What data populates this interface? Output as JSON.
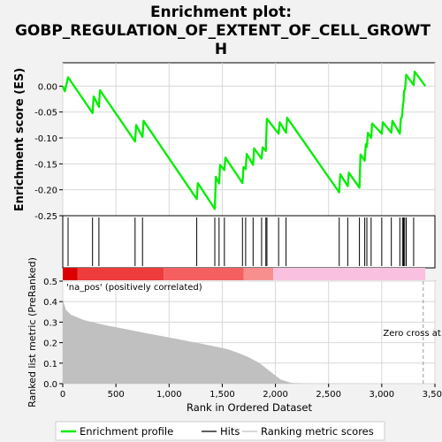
{
  "chart_data": {
    "type": "line",
    "title_line1": "Enrichment plot:",
    "title_line2": "GOBP_REGULATION_OF_EXTENT_OF_CELL_GROWT",
    "title_line3": "H",
    "es_panel": {
      "ylabel": "Enrichment score (ES)",
      "ylim": [
        -0.25,
        0.045
      ],
      "yticks": [
        0.0,
        -0.05,
        -0.1,
        -0.15,
        -0.2,
        -0.25
      ],
      "ytick_labels": [
        "0.00",
        "-0.05",
        "-0.10",
        "-0.15",
        "-0.20",
        "-0.25"
      ],
      "series_name": "Enrichment profile",
      "color": "#00ee00",
      "points": [
        [
          0,
          0.0
        ],
        [
          20,
          -0.01
        ],
        [
          50,
          0.017
        ],
        [
          280,
          -0.052
        ],
        [
          290,
          -0.02
        ],
        [
          340,
          -0.04
        ],
        [
          350,
          -0.008
        ],
        [
          680,
          -0.107
        ],
        [
          690,
          -0.075
        ],
        [
          750,
          -0.098
        ],
        [
          760,
          -0.067
        ],
        [
          1260,
          -0.218
        ],
        [
          1270,
          -0.187
        ],
        [
          1430,
          -0.237
        ],
        [
          1440,
          -0.175
        ],
        [
          1470,
          -0.188
        ],
        [
          1480,
          -0.152
        ],
        [
          1520,
          -0.162
        ],
        [
          1530,
          -0.138
        ],
        [
          1690,
          -0.187
        ],
        [
          1700,
          -0.156
        ],
        [
          1720,
          -0.16
        ],
        [
          1730,
          -0.131
        ],
        [
          1790,
          -0.152
        ],
        [
          1800,
          -0.12
        ],
        [
          1870,
          -0.14
        ],
        [
          1880,
          -0.118
        ],
        [
          1910,
          -0.125
        ],
        [
          1920,
          -0.063
        ],
        [
          2030,
          -0.092
        ],
        [
          2040,
          -0.07
        ],
        [
          2100,
          -0.09
        ],
        [
          2110,
          -0.061
        ],
        [
          2600,
          -0.205
        ],
        [
          2610,
          -0.17
        ],
        [
          2680,
          -0.193
        ],
        [
          2690,
          -0.167
        ],
        [
          2790,
          -0.196
        ],
        [
          2800,
          -0.132
        ],
        [
          2840,
          -0.144
        ],
        [
          2850,
          -0.112
        ],
        [
          2860,
          -0.117
        ],
        [
          2870,
          -0.09
        ],
        [
          2900,
          -0.1
        ],
        [
          2910,
          -0.072
        ],
        [
          3000,
          -0.092
        ],
        [
          3010,
          -0.07
        ],
        [
          3090,
          -0.09
        ],
        [
          3100,
          -0.067
        ],
        [
          3170,
          -0.092
        ],
        [
          3180,
          -0.062
        ],
        [
          3190,
          -0.06
        ],
        [
          3200,
          -0.035
        ],
        [
          3205,
          -0.03
        ],
        [
          3210,
          -0.01
        ],
        [
          3220,
          -0.005
        ],
        [
          3230,
          0.022
        ],
        [
          3300,
          0.002
        ],
        [
          3310,
          0.028
        ],
        [
          3410,
          0.0
        ]
      ]
    },
    "hits_panel": {
      "series_name": "Hits",
      "ranks": [
        50,
        280,
        340,
        680,
        750,
        1260,
        1430,
        1470,
        1520,
        1690,
        1720,
        1790,
        1870,
        1910,
        1920,
        2030,
        2100,
        2600,
        2680,
        2790,
        2840,
        2860,
        2900,
        3000,
        3090,
        3170,
        3195,
        3205,
        3215,
        3230,
        3300
      ]
    },
    "heatmap_bar": {
      "segments": [
        {
          "from": 0,
          "to": 140,
          "color": "#dd0000"
        },
        {
          "from": 140,
          "to": 950,
          "color": "#ee3b3b"
        },
        {
          "from": 950,
          "to": 1700,
          "color": "#f46060"
        },
        {
          "from": 1700,
          "to": 1980,
          "color": "#f78f8f"
        },
        {
          "from": 1980,
          "to": 3410,
          "color": "#fac0e0"
        }
      ]
    },
    "metric_panel": {
      "ylabel": "Ranked list metric (PreRanked)",
      "xlabel": "Rank in Ordered Dataset",
      "ylim": [
        0,
        0.5
      ],
      "yticks": [
        0.0,
        0.1,
        0.2,
        0.3,
        0.4,
        0.5
      ],
      "ytick_labels": [
        "0.0",
        "0.1",
        "0.2",
        "0.3",
        "0.4",
        "0.5"
      ],
      "xlim": [
        0,
        3500
      ],
      "xticks": [
        0,
        500,
        1000,
        1500,
        2000,
        2500,
        3000,
        3500
      ],
      "xtick_labels": [
        "0",
        "500",
        "1,000",
        "1,500",
        "2,000",
        "2,500",
        "3,000",
        "3,500"
      ],
      "series_name": "Ranking metric scores",
      "fill_color": "#c0c0c0",
      "points": [
        [
          0,
          0.41
        ],
        [
          30,
          0.36
        ],
        [
          80,
          0.335
        ],
        [
          200,
          0.31
        ],
        [
          400,
          0.285
        ],
        [
          600,
          0.265
        ],
        [
          800,
          0.245
        ],
        [
          1000,
          0.225
        ],
        [
          1200,
          0.205
        ],
        [
          1400,
          0.185
        ],
        [
          1550,
          0.168
        ],
        [
          1650,
          0.15
        ],
        [
          1750,
          0.128
        ],
        [
          1850,
          0.1
        ],
        [
          1950,
          0.06
        ],
        [
          2050,
          0.02
        ],
        [
          2150,
          0.004
        ],
        [
          2300,
          0.001
        ],
        [
          3410,
          0.0
        ]
      ],
      "pos_label": "'na_pos' (positively correlated)",
      "zero_cross_label": "Zero cross at",
      "zero_cross_rank": 3390
    },
    "legend": {
      "entries": [
        "Enrichment profile",
        "Hits",
        "Ranking metric scores"
      ]
    }
  }
}
